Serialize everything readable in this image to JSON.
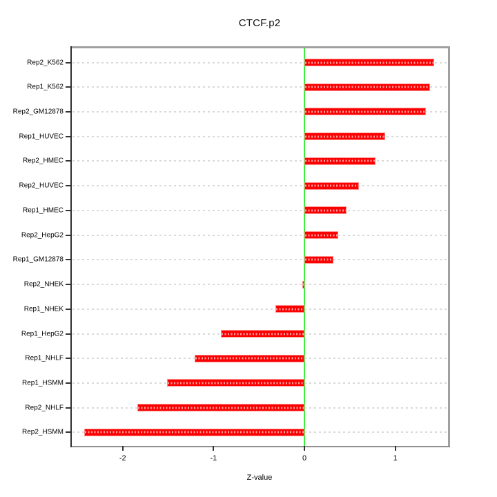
{
  "chart_data": {
    "type": "bar",
    "orientation": "horizontal",
    "title": "CTCF.p2",
    "xlabel": "Z-value",
    "ylabel": "",
    "categories": [
      "Rep2_K562",
      "Rep1_K562",
      "Rep2_GM12878",
      "Rep1_HUVEC",
      "Rep2_HMEC",
      "Rep2_HUVEC",
      "Rep1_HMEC",
      "Rep2_HepG2",
      "Rep1_GM12878",
      "Rep2_NHEK",
      "Rep1_NHEK",
      "Rep1_HepG2",
      "Rep1_NHLF",
      "Rep1_HSMM",
      "Rep2_NHLF",
      "Rep2_HSMM"
    ],
    "values": [
      1.43,
      1.38,
      1.34,
      0.89,
      0.78,
      0.6,
      0.46,
      0.37,
      0.32,
      -0.02,
      -0.32,
      -0.92,
      -1.21,
      -1.51,
      -1.84,
      -2.42
    ],
    "xlim": [
      -2.56,
      1.58
    ],
    "x_ticks": [
      -2,
      -1,
      0,
      1
    ],
    "grid": "dashed-horizontal-per-category",
    "legend": "none",
    "colors": {
      "bar": "#fb0000",
      "bar_edge": "#ff8d8d",
      "zero_line": "#3dee3d",
      "gridline": "#d9d9d9",
      "box_border": "#a0a0a0",
      "text": "#000000"
    }
  }
}
